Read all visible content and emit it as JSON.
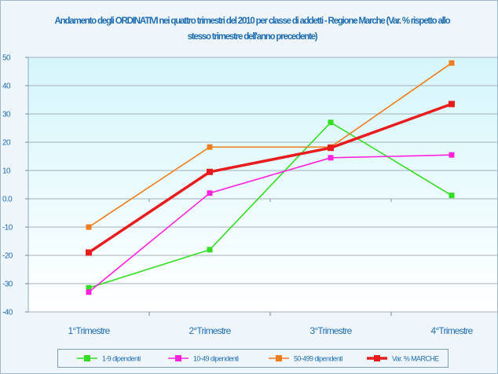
{
  "chart_data": {
    "type": "line",
    "title": "Andamento degli ORDINATIVI nei quattro trimestri del 2010 per classe di addetti - Regione Marche (Var. % rispetto allo stesso trimestre dell'anno precedente)",
    "categories": [
      "1°Trimestre",
      "2°Trimestre",
      "3°Trimestre",
      "4°Trimestre"
    ],
    "ylim": [
      -40,
      50
    ],
    "yticks": [
      "50",
      "40",
      "30",
      "20",
      "10",
      "0.0",
      "-10",
      "-20",
      "-30",
      "-40"
    ],
    "grid": true,
    "legend_position": "bottom",
    "series": [
      {
        "name": "1-9 dipendenti",
        "color": "#33dd22",
        "values": [
          -31.5,
          -18,
          27,
          1.2
        ]
      },
      {
        "name": "10-49 dipendenti",
        "color": "#ff22dd",
        "values": [
          -33,
          2,
          14.5,
          15.5
        ]
      },
      {
        "name": "50-499 dipendenti",
        "color": "#f07d1c",
        "values": [
          -10,
          18.3,
          18.3,
          48
        ]
      },
      {
        "name": "Var. % MARCHE",
        "color": "#e81c1c",
        "values": [
          -19,
          9.5,
          18,
          33.5
        ]
      }
    ]
  }
}
